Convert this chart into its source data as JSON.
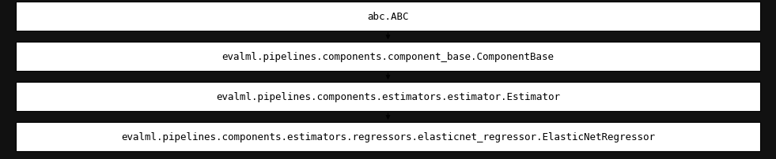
{
  "background_color": "#111111",
  "box_color": "#ffffff",
  "box_edge_color": "#000000",
  "text_color": "#000000",
  "arrow_color": "#000000",
  "boxes": [
    "abc.ABC",
    "evalml.pipelines.components.component_base.ComponentBase",
    "evalml.pipelines.components.estimators.estimator.Estimator",
    "evalml.pipelines.components.estimators.regressors.elasticnet_regressor.ElasticNetRegressor"
  ],
  "font_size": 9.0,
  "figsize": [
    9.81,
    2.03
  ],
  "dpi": 100
}
